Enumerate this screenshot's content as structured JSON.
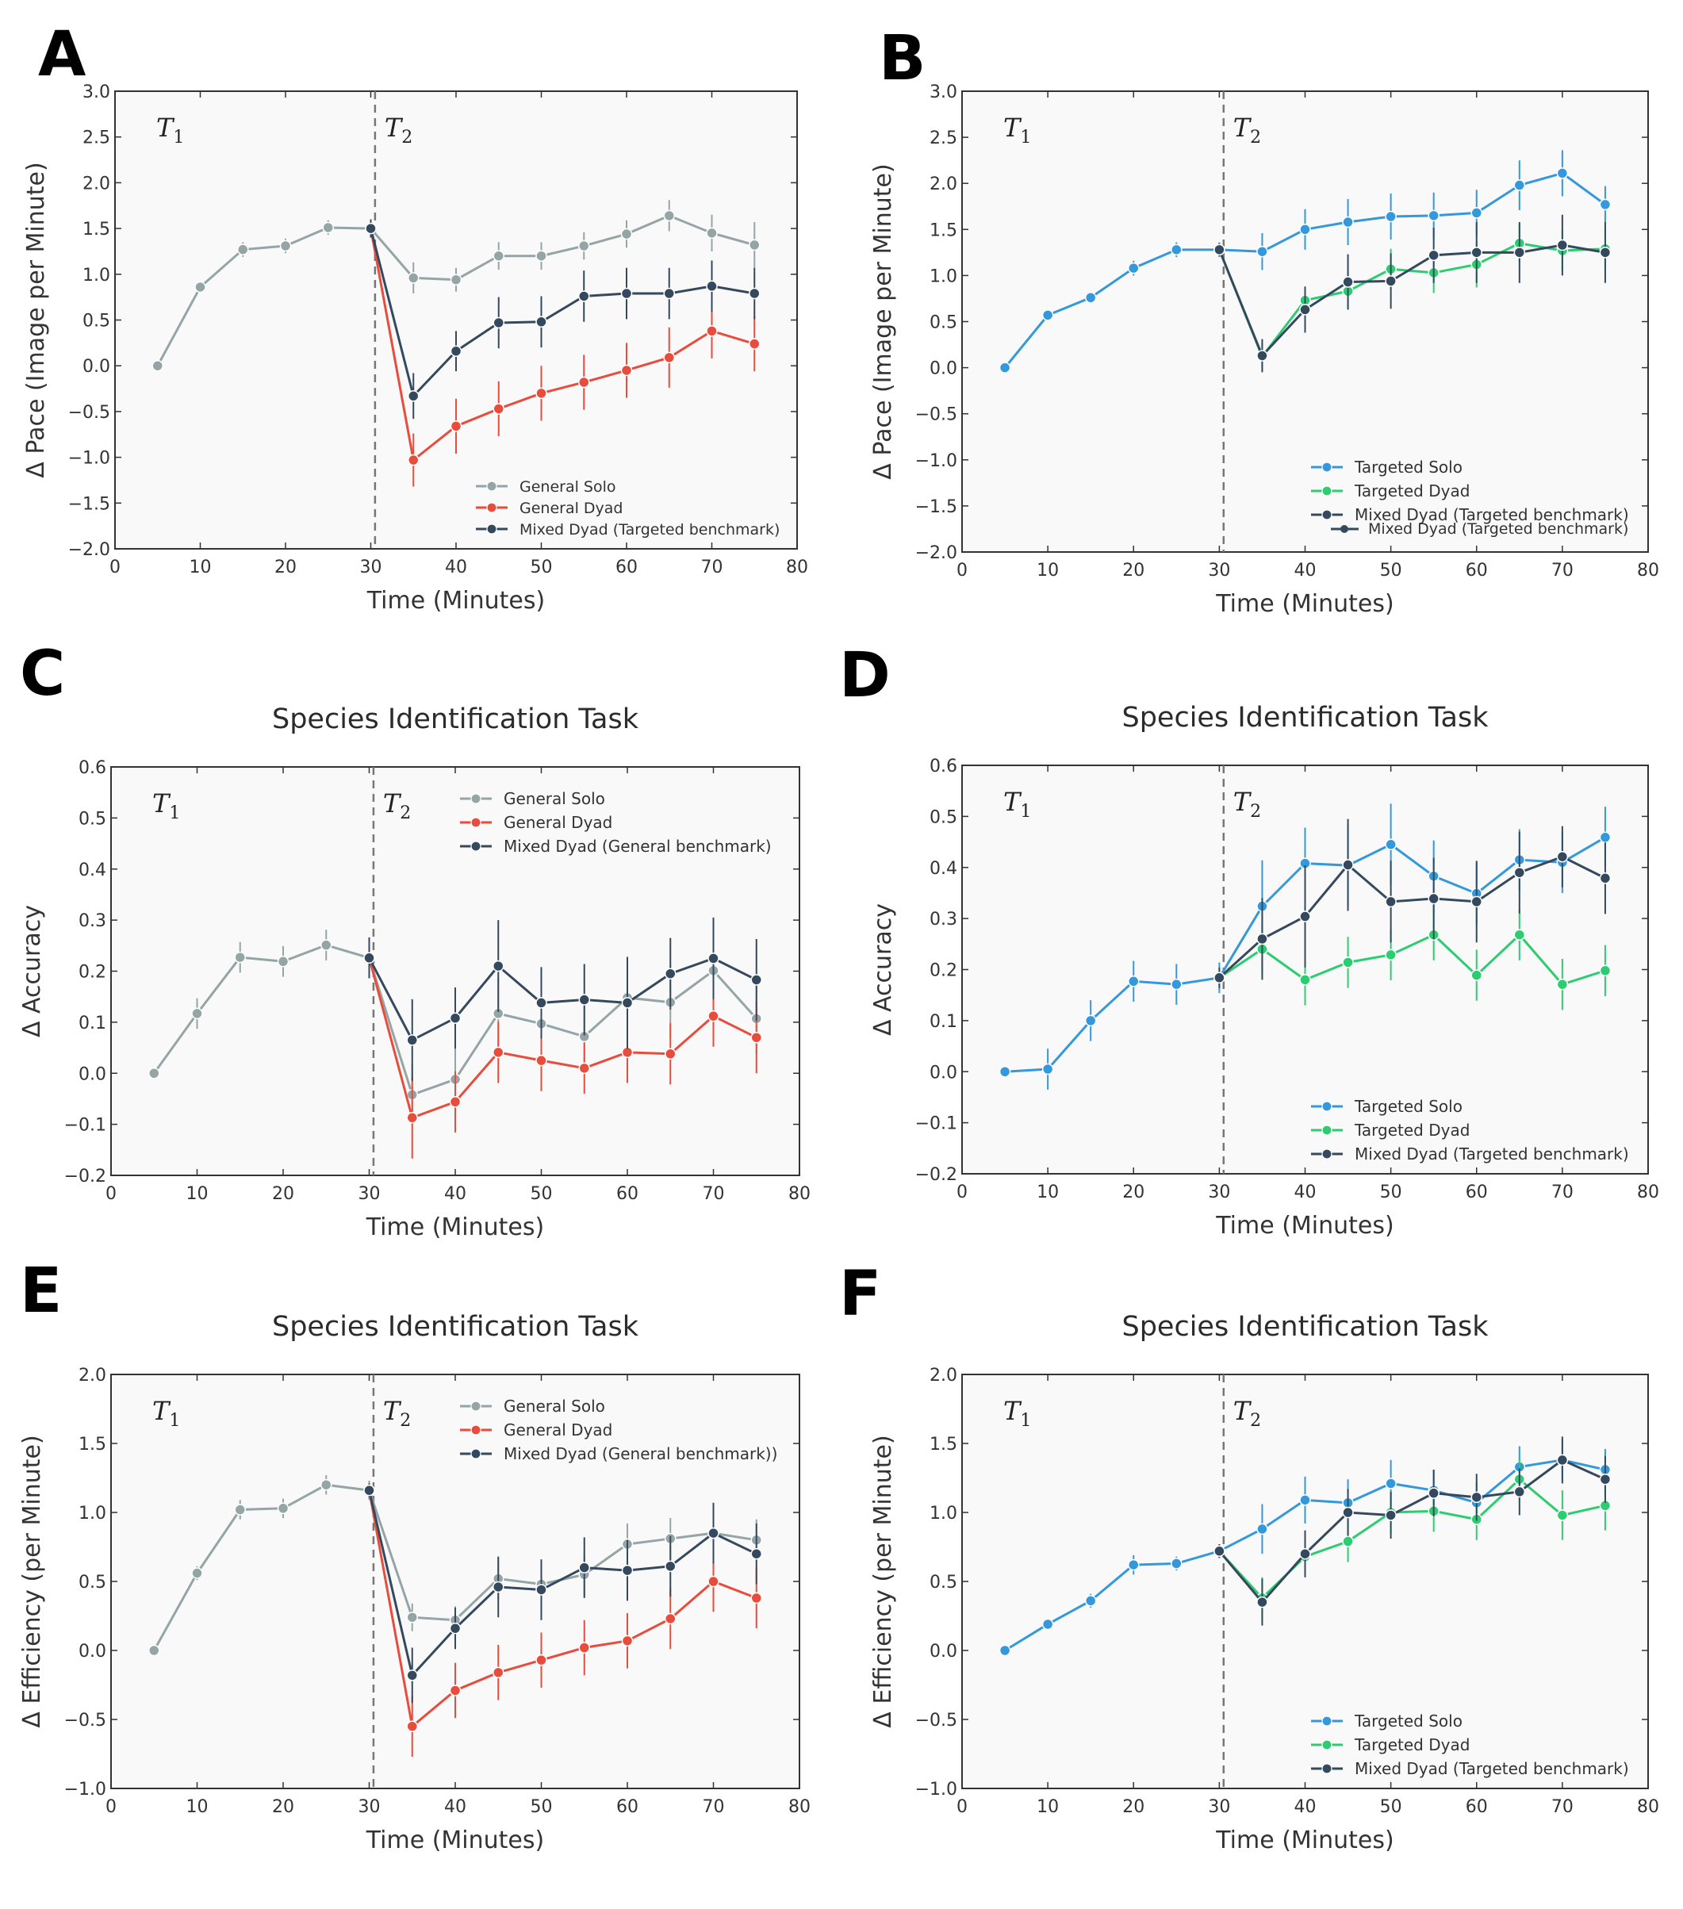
{
  "chart_data": [
    {
      "id": "A",
      "panel_label": "A",
      "type": "line",
      "title": "",
      "xlabel": "Time (Minutes)",
      "ylabel": "Δ Pace (Image per Minute)",
      "xlim": [
        0,
        80
      ],
      "ylim": [
        -2.0,
        3.0
      ],
      "xticks": [
        0,
        10,
        20,
        30,
        40,
        50,
        60,
        70,
        80
      ],
      "yticks": [
        3.0,
        2.5,
        2.0,
        1.5,
        1.0,
        0.5,
        0.0,
        -0.5,
        -1.0,
        -1.5,
        -2.0
      ],
      "ytick_labels": [
        "3.0",
        "2.5",
        "2.0",
        "1.5",
        "1.0",
        "0.5",
        "0.0",
        "−0.5",
        "−1.0",
        "−1.5",
        "−2.0"
      ],
      "t1_label": "T",
      "t1_sub": "1",
      "t2_label": "T",
      "t2_sub": "2",
      "divider_x": 30.5,
      "legend_position": "lower-right",
      "legend_size": "small",
      "series": [
        {
          "name": "General Solo",
          "color": "#95a5a6",
          "x": [
            5,
            10,
            15,
            20,
            25,
            30,
            35,
            40,
            45,
            50,
            55,
            60,
            65,
            70,
            75
          ],
          "y": [
            0.0,
            0.86,
            1.27,
            1.31,
            1.51,
            1.5,
            0.96,
            0.94,
            1.2,
            1.2,
            1.31,
            1.44,
            1.64,
            1.45,
            1.32
          ],
          "err": [
            0,
            0,
            0.08,
            0.08,
            0.08,
            0.08,
            0.17,
            0.13,
            0.15,
            0.15,
            0.15,
            0.15,
            0.17,
            0.2,
            0.25
          ]
        },
        {
          "name": "General Dyad",
          "color": "#e74c3c",
          "x": [
            30,
            35,
            40,
            45,
            50,
            55,
            60,
            65,
            70,
            75
          ],
          "y": [
            1.5,
            -1.03,
            -0.66,
            -0.47,
            -0.3,
            -0.18,
            -0.05,
            0.09,
            0.38,
            0.24
          ],
          "err": [
            0,
            0.29,
            0.3,
            0.3,
            0.3,
            0.3,
            0.3,
            0.33,
            0.3,
            0.3
          ]
        },
        {
          "name": "Mixed Dyad (Targeted benchmark)",
          "color": "#34495e",
          "x": [
            30,
            35,
            40,
            45,
            50,
            55,
            60,
            65,
            70,
            75
          ],
          "y": [
            1.5,
            -0.33,
            0.16,
            0.47,
            0.48,
            0.76,
            0.79,
            0.79,
            0.87,
            0.79
          ],
          "err": [
            0.1,
            0.25,
            0.22,
            0.28,
            0.28,
            0.28,
            0.28,
            0.28,
            0.28,
            0.28
          ]
        }
      ]
    },
    {
      "id": "B",
      "panel_label": "B",
      "type": "line",
      "title": "",
      "xlabel": "Time (Minutes)",
      "ylabel": "Δ Pace (Image per Minute)",
      "xlim": [
        0,
        80
      ],
      "ylim": [
        -2.0,
        3.0
      ],
      "xticks": [
        0,
        10,
        20,
        30,
        40,
        50,
        60,
        70,
        80
      ],
      "yticks": [
        3.0,
        2.5,
        2.0,
        1.5,
        1.0,
        0.5,
        0.0,
        -0.5,
        -1.0,
        -1.5,
        -2.0
      ],
      "ytick_labels": [
        "3.0",
        "2.5",
        "2.0",
        "1.5",
        "1.0",
        "0.5",
        "0.0",
        "−0.5",
        "−1.0",
        "−1.5",
        "−2.0"
      ],
      "t1_label": "T",
      "t1_sub": "1",
      "t2_label": "T",
      "t2_sub": "2",
      "divider_x": 30.5,
      "legend_position": "lower-right",
      "legend_size": "big",
      "extra_legend_text": "Mixed Dyad (Targeted benchmark)",
      "series": [
        {
          "name": "Targeted Solo",
          "color": "#3498db",
          "x": [
            5,
            10,
            15,
            20,
            25,
            30,
            35,
            40,
            45,
            50,
            55,
            60,
            65,
            70,
            75
          ],
          "y": [
            0.0,
            0.57,
            0.76,
            1.08,
            1.28,
            1.28,
            1.26,
            1.5,
            1.58,
            1.64,
            1.65,
            1.68,
            1.98,
            2.11,
            1.77
          ],
          "err": [
            0,
            0,
            0,
            0.08,
            0.08,
            0.08,
            0.2,
            0.22,
            0.25,
            0.25,
            0.25,
            0.25,
            0.27,
            0.25,
            0.2
          ]
        },
        {
          "name": "Targeted Dyad",
          "color": "#2ecc71",
          "x": [
            30,
            35,
            40,
            45,
            50,
            55,
            60,
            65,
            70,
            75
          ],
          "y": [
            1.28,
            0.12,
            0.73,
            0.83,
            1.07,
            1.03,
            1.12,
            1.35,
            1.27,
            1.29
          ],
          "err": [
            0,
            0.15,
            0.15,
            0.2,
            0.22,
            0.22,
            0.25,
            0.2,
            0.22,
            0.22
          ]
        },
        {
          "name": "Mixed Dyad (Targeted benchmark)",
          "color": "#34495e",
          "x": [
            30,
            35,
            40,
            45,
            50,
            55,
            60,
            65,
            70,
            75
          ],
          "y": [
            1.28,
            0.13,
            0.63,
            0.93,
            0.94,
            1.22,
            1.25,
            1.25,
            1.33,
            1.25
          ],
          "err": [
            0.07,
            0.18,
            0.25,
            0.3,
            0.3,
            0.3,
            0.33,
            0.33,
            0.33,
            0.33
          ]
        }
      ]
    },
    {
      "id": "C",
      "panel_label": "C",
      "type": "line",
      "title": "Species Identification Task",
      "xlabel": "Time (Minutes)",
      "ylabel": "Δ Accuracy",
      "xlim": [
        0,
        80
      ],
      "ylim": [
        -0.2,
        0.6
      ],
      "xticks": [
        0,
        10,
        20,
        30,
        40,
        50,
        60,
        70,
        80
      ],
      "yticks": [
        0.6,
        0.5,
        0.4,
        0.3,
        0.2,
        0.1,
        0.0,
        -0.1,
        -0.2
      ],
      "ytick_labels": [
        "0.6",
        "0.5",
        "0.4",
        "0.3",
        "0.2",
        "0.1",
        "0.0",
        "−0.1",
        "−0.2"
      ],
      "t1_label": "T",
      "t1_sub": "1",
      "t2_label": "T",
      "t2_sub": "2",
      "divider_x": 30.5,
      "legend_position": "top-right",
      "legend_size": "big",
      "series": [
        {
          "name": "General Solo",
          "color": "#95a5a6",
          "x": [
            5,
            10,
            15,
            20,
            25,
            30,
            35,
            40,
            45,
            50,
            55,
            60,
            65,
            70,
            75
          ],
          "y": [
            0.0,
            0.117,
            0.227,
            0.219,
            0.251,
            0.226,
            -0.042,
            -0.012,
            0.117,
            0.097,
            0.072,
            0.148,
            0.139,
            0.201,
            0.107
          ],
          "err": [
            0,
            0.03,
            0.03,
            0.03,
            0.03,
            0.03,
            0.06,
            0.06,
            0.07,
            0.07,
            0.07,
            0.07,
            0.07,
            0.07,
            0.07
          ]
        },
        {
          "name": "General Dyad",
          "color": "#e74c3c",
          "x": [
            30,
            35,
            40,
            45,
            50,
            55,
            60,
            65,
            70,
            75
          ],
          "y": [
            0.226,
            -0.087,
            -0.056,
            0.041,
            0.025,
            0.01,
            0.041,
            0.038,
            0.112,
            0.07
          ],
          "err": [
            0,
            0.08,
            0.06,
            0.06,
            0.06,
            0.05,
            0.06,
            0.06,
            0.06,
            0.07
          ]
        },
        {
          "name": "Mixed Dyad (General benchmark)",
          "color": "#34495e",
          "x": [
            30,
            35,
            40,
            45,
            50,
            55,
            60,
            65,
            70,
            75
          ],
          "y": [
            0.226,
            0.065,
            0.108,
            0.21,
            0.138,
            0.144,
            0.138,
            0.195,
            0.225,
            0.183
          ],
          "err": [
            0.04,
            0.08,
            0.06,
            0.09,
            0.07,
            0.07,
            0.09,
            0.07,
            0.08,
            0.08
          ]
        }
      ]
    },
    {
      "id": "D",
      "panel_label": "D",
      "type": "line",
      "title": "Species Identification Task",
      "xlabel": "Time (Minutes)",
      "ylabel": "Δ Accuracy",
      "xlim": [
        0,
        80
      ],
      "ylim": [
        -0.2,
        0.6
      ],
      "xticks": [
        0,
        10,
        20,
        30,
        40,
        50,
        60,
        70,
        80
      ],
      "yticks": [
        0.6,
        0.5,
        0.4,
        0.3,
        0.2,
        0.1,
        0.0,
        -0.1,
        -0.2
      ],
      "ytick_labels": [
        "0.6",
        "0.5",
        "0.4",
        "0.3",
        "0.2",
        "0.1",
        "0.0",
        "−0.1",
        "−0.2"
      ],
      "t1_label": "T",
      "t1_sub": "1",
      "t2_label": "T",
      "t2_sub": "2",
      "divider_x": 30.5,
      "legend_position": "lower-right",
      "legend_size": "big",
      "series": [
        {
          "name": "Targeted Solo",
          "color": "#3498db",
          "x": [
            5,
            10,
            15,
            20,
            25,
            30,
            35,
            40,
            45,
            50,
            55,
            60,
            65,
            70,
            75
          ],
          "y": [
            0.0,
            0.005,
            0.1,
            0.177,
            0.171,
            0.184,
            0.324,
            0.408,
            0.404,
            0.445,
            0.383,
            0.349,
            0.415,
            0.41,
            0.459
          ],
          "err": [
            0,
            0.04,
            0.04,
            0.04,
            0.04,
            0.03,
            0.09,
            0.07,
            0.08,
            0.08,
            0.07,
            0.06,
            0.06,
            0.06,
            0.06
          ]
        },
        {
          "name": "Targeted Dyad",
          "color": "#2ecc71",
          "x": [
            30,
            35,
            40,
            45,
            50,
            55,
            60,
            65,
            70,
            75
          ],
          "y": [
            0.184,
            0.24,
            0.18,
            0.214,
            0.229,
            0.268,
            0.189,
            0.268,
            0.171,
            0.198
          ],
          "err": [
            0,
            0.05,
            0.05,
            0.05,
            0.05,
            0.05,
            0.05,
            0.05,
            0.05,
            0.05
          ]
        },
        {
          "name": "Mixed Dyad (Targeted benchmark)",
          "color": "#34495e",
          "x": [
            30,
            35,
            40,
            45,
            50,
            55,
            60,
            65,
            70,
            75
          ],
          "y": [
            0.184,
            0.26,
            0.304,
            0.405,
            0.333,
            0.339,
            0.333,
            0.39,
            0.421,
            0.379
          ],
          "err": [
            0.02,
            0.08,
            0.1,
            0.09,
            0.08,
            0.08,
            0.08,
            0.08,
            0.06,
            0.07
          ]
        }
      ]
    },
    {
      "id": "E",
      "panel_label": "E",
      "type": "line",
      "title": "Species Identification Task",
      "xlabel": "Time (Minutes)",
      "ylabel": "Δ Efficiency (per Minute)",
      "xlim": [
        0,
        80
      ],
      "ylim": [
        -1.0,
        2.0
      ],
      "xticks": [
        0,
        10,
        20,
        30,
        40,
        50,
        60,
        70,
        80
      ],
      "yticks": [
        2.0,
        1.5,
        1.0,
        0.5,
        0.0,
        -0.5,
        -1.0
      ],
      "ytick_labels": [
        "2.0",
        "1.5",
        "1.0",
        "0.5",
        "0.0",
        "−0.5",
        "−1.0"
      ],
      "t1_label": "T",
      "t1_sub": "1",
      "t2_label": "T",
      "t2_sub": "2",
      "divider_x": 30.5,
      "legend_position": "top-right",
      "legend_size": "big",
      "series": [
        {
          "name": "General Solo",
          "color": "#95a5a6",
          "x": [
            5,
            10,
            15,
            20,
            25,
            30,
            35,
            40,
            45,
            50,
            55,
            60,
            65,
            70,
            75
          ],
          "y": [
            0.0,
            0.56,
            1.02,
            1.03,
            1.2,
            1.16,
            0.24,
            0.22,
            0.52,
            0.48,
            0.55,
            0.77,
            0.81,
            0.85,
            0.8
          ],
          "err": [
            0,
            0.05,
            0.07,
            0.07,
            0.07,
            0.07,
            0.1,
            0.1,
            0.15,
            0.15,
            0.15,
            0.15,
            0.15,
            0.15,
            0.15
          ]
        },
        {
          "name": "General Dyad",
          "color": "#e74c3c",
          "x": [
            30,
            35,
            40,
            45,
            50,
            55,
            60,
            65,
            70,
            75
          ],
          "y": [
            1.16,
            -0.55,
            -0.29,
            -0.16,
            -0.07,
            0.02,
            0.07,
            0.23,
            0.5,
            0.38
          ],
          "err": [
            0,
            0.22,
            0.2,
            0.2,
            0.2,
            0.2,
            0.2,
            0.22,
            0.22,
            0.22
          ]
        },
        {
          "name": "Mixed Dyad (General benchmark))",
          "color": "#34495e",
          "x": [
            30,
            35,
            40,
            45,
            50,
            55,
            60,
            65,
            70,
            75
          ],
          "y": [
            1.16,
            -0.18,
            0.16,
            0.46,
            0.44,
            0.6,
            0.58,
            0.61,
            0.85,
            0.7
          ],
          "err": [
            0.05,
            0.2,
            0.15,
            0.22,
            0.22,
            0.22,
            0.22,
            0.22,
            0.22,
            0.22
          ]
        }
      ]
    },
    {
      "id": "F",
      "panel_label": "F",
      "type": "line",
      "title": "Species Identification Task",
      "xlabel": "Time (Minutes)",
      "ylabel": "Δ Efficiency (per Minute)",
      "xlim": [
        0,
        80
      ],
      "ylim": [
        -1.0,
        2.0
      ],
      "xticks": [
        0,
        10,
        20,
        30,
        40,
        50,
        60,
        70,
        80
      ],
      "yticks": [
        2.0,
        1.5,
        1.0,
        0.5,
        0.0,
        -0.5,
        -1.0
      ],
      "ytick_labels": [
        "2.0",
        "1.5",
        "1.0",
        "0.5",
        "0.0",
        "−0.5",
        "−1.0"
      ],
      "t1_label": "T",
      "t1_sub": "1",
      "t2_label": "T",
      "t2_sub": "2",
      "divider_x": 30.5,
      "legend_position": "lower-right",
      "legend_size": "big",
      "series": [
        {
          "name": "Targeted Solo",
          "color": "#3498db",
          "x": [
            5,
            10,
            15,
            20,
            25,
            30,
            35,
            40,
            45,
            50,
            55,
            60,
            65,
            70,
            75
          ],
          "y": [
            0.0,
            0.19,
            0.36,
            0.62,
            0.63,
            0.72,
            0.88,
            1.09,
            1.07,
            1.21,
            1.16,
            1.07,
            1.33,
            1.38,
            1.31
          ],
          "err": [
            0,
            0.03,
            0.05,
            0.07,
            0.05,
            0.05,
            0.18,
            0.17,
            0.17,
            0.17,
            0.15,
            0.15,
            0.15,
            0.15,
            0.15
          ]
        },
        {
          "name": "Targeted Dyad",
          "color": "#2ecc71",
          "x": [
            30,
            35,
            40,
            45,
            50,
            55,
            60,
            65,
            70,
            75
          ],
          "y": [
            0.72,
            0.38,
            0.68,
            0.79,
            1.0,
            1.01,
            0.95,
            1.24,
            0.98,
            1.05
          ],
          "err": [
            0,
            0.15,
            0.15,
            0.15,
            0.15,
            0.15,
            0.15,
            0.15,
            0.18,
            0.18
          ]
        },
        {
          "name": "Mixed Dyad (Targeted benchmark)",
          "color": "#34495e",
          "x": [
            30,
            35,
            40,
            45,
            50,
            55,
            60,
            65,
            70,
            75
          ],
          "y": [
            0.72,
            0.35,
            0.7,
            1.0,
            0.98,
            1.14,
            1.11,
            1.15,
            1.38,
            1.24
          ],
          "err": [
            0.05,
            0.17,
            0.17,
            0.17,
            0.17,
            0.17,
            0.17,
            0.17,
            0.17,
            0.17
          ]
        }
      ]
    }
  ]
}
